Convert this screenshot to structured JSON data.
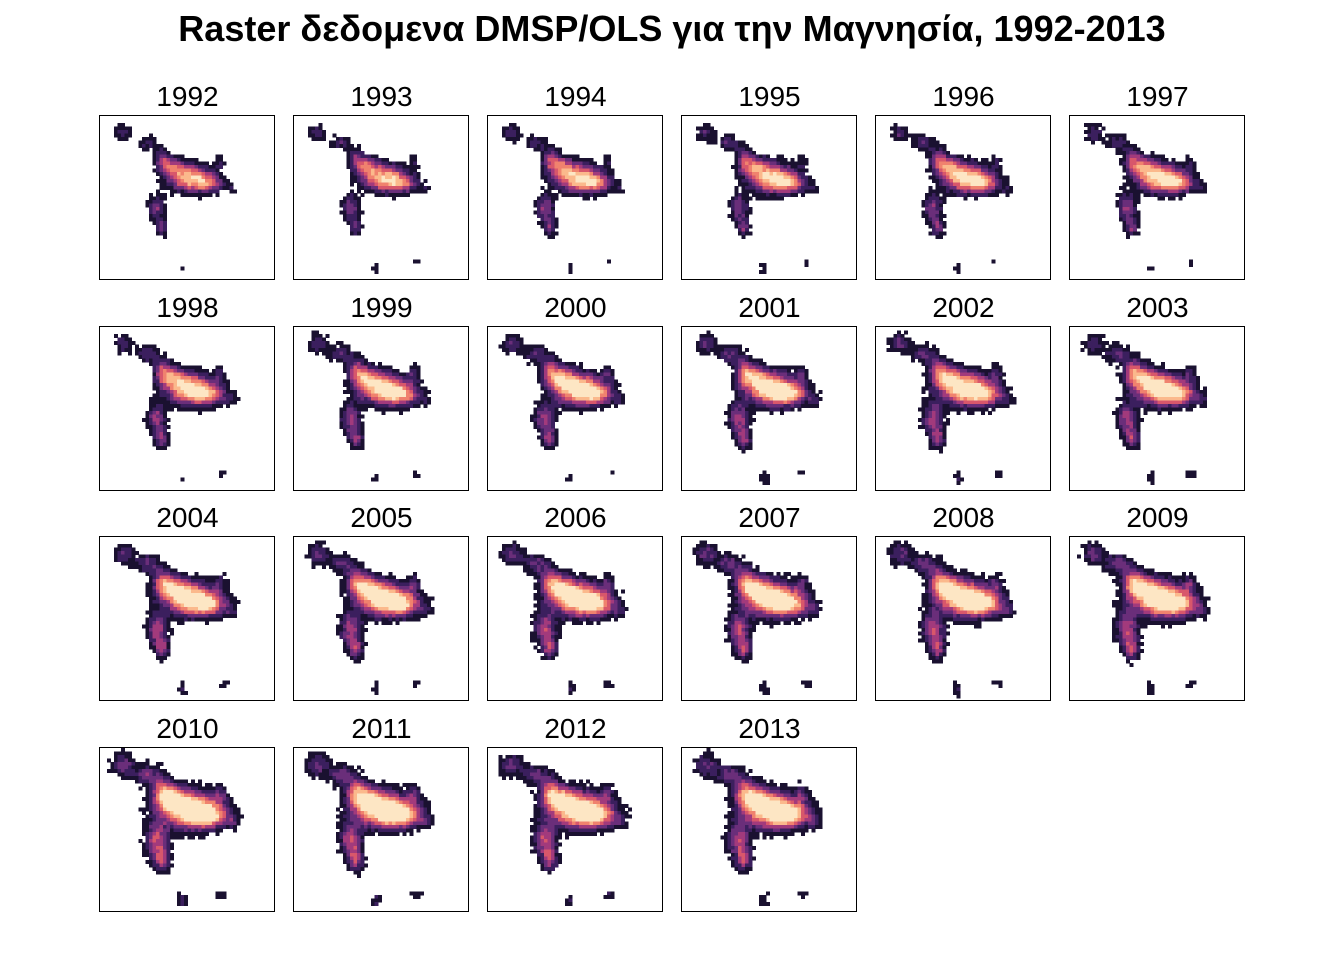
{
  "title": "Raster δεδομενα DMSP/OLS για την Μαγνησία, 1992-2013",
  "colors": {
    "background": "#ffffff",
    "frame": "#000000",
    "palette": [
      "#1a1130",
      "#3b1f5e",
      "#6a2e7a",
      "#a23a7c",
      "#d8576b",
      "#f0826e",
      "#fbb98c",
      "#fde6c4"
    ]
  },
  "panels": [
    {
      "year": "1992",
      "intensity": 0.35
    },
    {
      "year": "1993",
      "intensity": 0.38
    },
    {
      "year": "1994",
      "intensity": 0.45
    },
    {
      "year": "1995",
      "intensity": 0.48
    },
    {
      "year": "1996",
      "intensity": 0.5
    },
    {
      "year": "1997",
      "intensity": 0.52
    },
    {
      "year": "1998",
      "intensity": 0.58
    },
    {
      "year": "1999",
      "intensity": 0.62
    },
    {
      "year": "2000",
      "intensity": 0.66
    },
    {
      "year": "2001",
      "intensity": 0.7
    },
    {
      "year": "2002",
      "intensity": 0.72
    },
    {
      "year": "2003",
      "intensity": 0.68
    },
    {
      "year": "2004",
      "intensity": 0.74
    },
    {
      "year": "2005",
      "intensity": 0.76
    },
    {
      "year": "2006",
      "intensity": 0.8
    },
    {
      "year": "2007",
      "intensity": 0.82
    },
    {
      "year": "2008",
      "intensity": 0.84
    },
    {
      "year": "2009",
      "intensity": 0.86
    },
    {
      "year": "2010",
      "intensity": 0.95
    },
    {
      "year": "2011",
      "intensity": 0.9
    },
    {
      "year": "2012",
      "intensity": 0.88
    },
    {
      "year": "2013",
      "intensity": 0.9
    }
  ]
}
